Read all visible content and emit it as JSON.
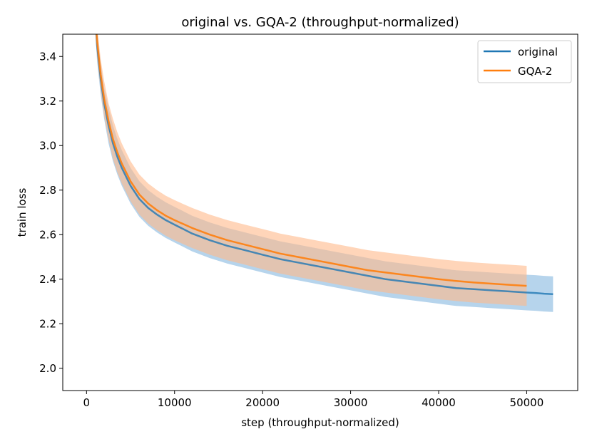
{
  "chart_data": {
    "type": "line",
    "title": "original vs. GQA-2 (throughput-normalized)",
    "xlabel": "step (throughput-normalized)",
    "ylabel": "train loss",
    "xlim": [
      -2700,
      55800
    ],
    "ylim": [
      1.9,
      3.5
    ],
    "xticks": [
      0,
      10000,
      20000,
      30000,
      40000,
      50000
    ],
    "xtick_labels": [
      "0",
      "10000",
      "20000",
      "30000",
      "40000",
      "50000"
    ],
    "yticks": [
      2.0,
      2.2,
      2.4,
      2.6,
      2.8,
      3.0,
      3.2,
      3.4
    ],
    "ytick_labels": [
      "2.0",
      "2.2",
      "2.4",
      "2.6",
      "2.8",
      "3.0",
      "3.2",
      "3.4"
    ],
    "grid": false,
    "legend": "top-right",
    "series": [
      {
        "name": "original",
        "color": "#1f77b4",
        "band_color": "#9ec6e6",
        "x": [
          800,
          1200,
          1600,
          2000,
          2500,
          3000,
          3500,
          4000,
          5000,
          6000,
          7000,
          8000,
          9000,
          10000,
          12000,
          14000,
          16000,
          18000,
          20000,
          22000,
          24000,
          26000,
          28000,
          30000,
          32000,
          34000,
          36000,
          38000,
          40000,
          42000,
          44000,
          46000,
          48000,
          50000,
          51000,
          52000,
          53000
        ],
        "mean": [
          3.7,
          3.45,
          3.3,
          3.19,
          3.09,
          3.01,
          2.95,
          2.9,
          2.82,
          2.76,
          2.72,
          2.69,
          2.665,
          2.645,
          2.605,
          2.575,
          2.55,
          2.53,
          2.51,
          2.49,
          2.475,
          2.46,
          2.445,
          2.43,
          2.415,
          2.4,
          2.39,
          2.38,
          2.37,
          2.36,
          2.355,
          2.35,
          2.345,
          2.34,
          2.338,
          2.335,
          2.333
        ],
        "spread": [
          0.06,
          0.07,
          0.07,
          0.07,
          0.08,
          0.08,
          0.08,
          0.08,
          0.08,
          0.08,
          0.08,
          0.08,
          0.08,
          0.08,
          0.08,
          0.08,
          0.08,
          0.08,
          0.08,
          0.08,
          0.08,
          0.08,
          0.08,
          0.08,
          0.08,
          0.08,
          0.08,
          0.08,
          0.08,
          0.08,
          0.08,
          0.08,
          0.08,
          0.08,
          0.08,
          0.08,
          0.08
        ]
      },
      {
        "name": "GQA-2",
        "color": "#ff7f0e",
        "band_color": "#ffb98a",
        "x": [
          800,
          1200,
          1600,
          2000,
          2500,
          3000,
          3500,
          4000,
          5000,
          6000,
          7000,
          8000,
          9000,
          10000,
          12000,
          14000,
          16000,
          18000,
          20000,
          22000,
          24000,
          26000,
          28000,
          30000,
          32000,
          34000,
          36000,
          38000,
          40000,
          42000,
          44000,
          46000,
          48000,
          50000
        ],
        "mean": [
          3.7,
          3.47,
          3.32,
          3.21,
          3.11,
          3.03,
          2.97,
          2.92,
          2.84,
          2.78,
          2.74,
          2.71,
          2.685,
          2.665,
          2.63,
          2.6,
          2.575,
          2.555,
          2.535,
          2.515,
          2.5,
          2.485,
          2.47,
          2.455,
          2.44,
          2.43,
          2.42,
          2.41,
          2.4,
          2.392,
          2.385,
          2.38,
          2.375,
          2.37
        ],
        "spread": [
          0.06,
          0.07,
          0.07,
          0.08,
          0.08,
          0.09,
          0.09,
          0.09,
          0.09,
          0.09,
          0.09,
          0.09,
          0.09,
          0.09,
          0.09,
          0.09,
          0.09,
          0.09,
          0.09,
          0.09,
          0.09,
          0.09,
          0.09,
          0.09,
          0.09,
          0.09,
          0.09,
          0.09,
          0.09,
          0.09,
          0.09,
          0.09,
          0.09,
          0.09
        ]
      }
    ]
  }
}
